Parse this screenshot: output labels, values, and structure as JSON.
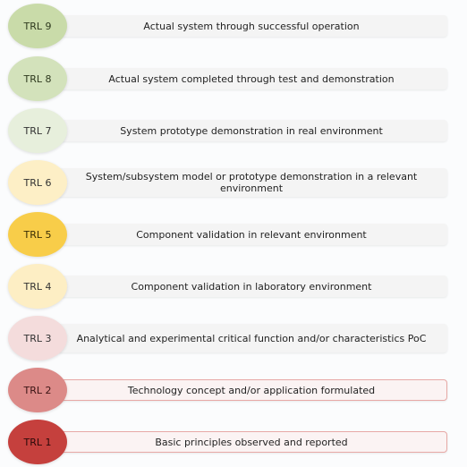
{
  "levels": [
    {
      "label": "TRL 9",
      "text": "Actual system through successful operation",
      "color": "#c9dba9",
      "text_color": "#2f3a1f"
    },
    {
      "label": "TRL 8",
      "text": "Actual system completed through test and demonstration",
      "color": "#d3e2bb",
      "text_color": "#2f3a1f"
    },
    {
      "label": "TRL 7",
      "text": "System prototype demonstration in real environment",
      "color": "#e7efdc",
      "text_color": "#333333"
    },
    {
      "label": "TRL 6",
      "text": "System/subsystem model or prototype demonstration in a relevant environment",
      "color": "#fdefc6",
      "text_color": "#333333"
    },
    {
      "label": "TRL 5",
      "text": "Component validation in relevant environment",
      "color": "#f8cd49",
      "text_color": "#3a2e05"
    },
    {
      "label": "TRL 4",
      "text": "Component validation in laboratory environment",
      "color": "#fdeec4",
      "text_color": "#333333"
    },
    {
      "label": "TRL 3",
      "text": "Analytical and experimental critical function and/or characteristics PoC",
      "color": "#f4dcdc",
      "text_color": "#333333"
    },
    {
      "label": "TRL 2",
      "text": "Technology concept and/or application formulated",
      "color": "#dc8a88",
      "text_color": "#3a1414"
    },
    {
      "label": "TRL 1",
      "text": "Basic principles observed and reported",
      "color": "#c5403d",
      "text_color": "#2a0909"
    }
  ]
}
